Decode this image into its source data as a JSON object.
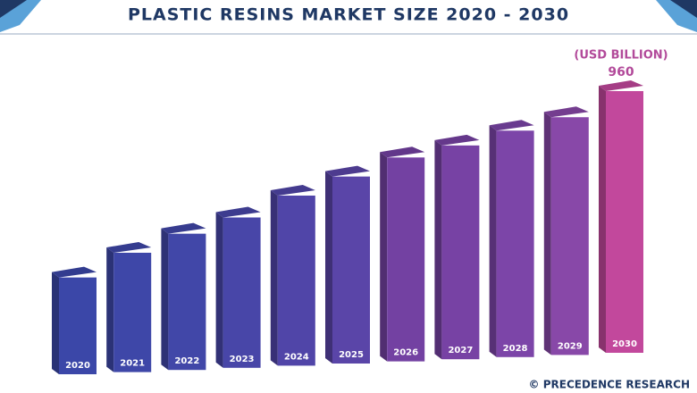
{
  "chart_data": {
    "type": "bar3d",
    "title": "PLASTIC RESINS MARKET SIZE 2020 - 2030",
    "unit_label": "(USD BILLION)",
    "categories": [
      "2020",
      "2021",
      "2022",
      "2023",
      "2024",
      "2025",
      "2026",
      "2027",
      "2028",
      "2029",
      "2030"
    ],
    "values": [
      375,
      455,
      515,
      565,
      635,
      695,
      755,
      790,
      835,
      875,
      960
    ],
    "colors": [
      "#3b47a8",
      "#3e47a8",
      "#4147a8",
      "#4846a8",
      "#5045a8",
      "#5a45a8",
      "#7341a2",
      "#7742a4",
      "#7c45a8",
      "#8848a8",
      "#c2489c"
    ],
    "source": "© PRECEDENCE RESEARCH"
  }
}
